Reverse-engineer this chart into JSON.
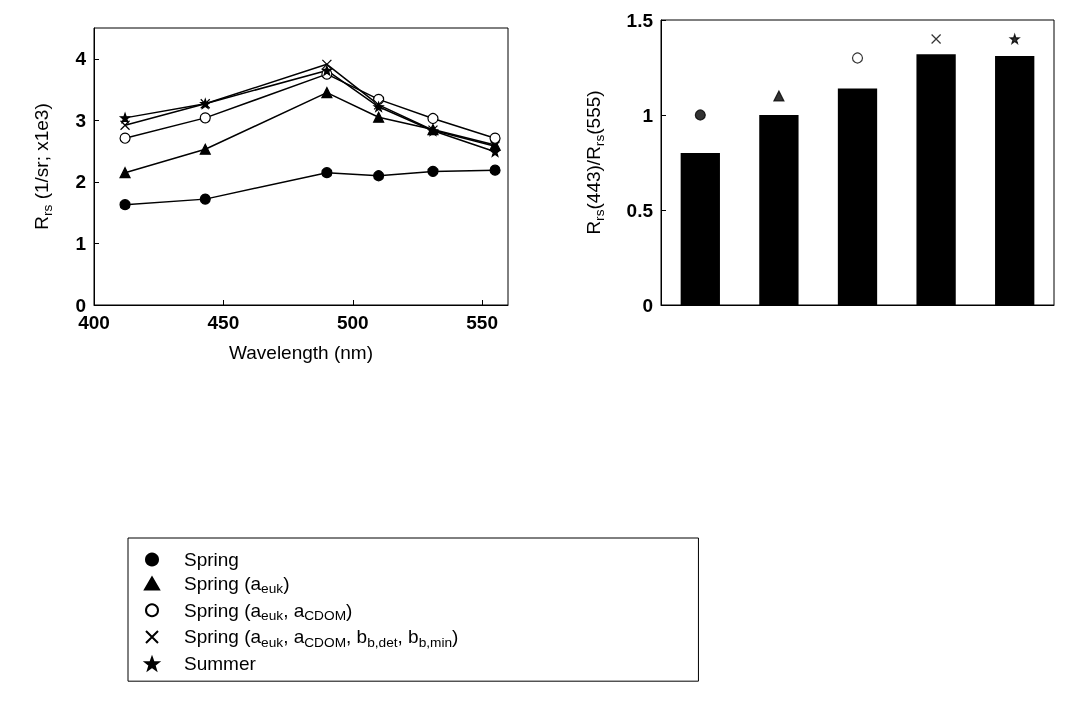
{
  "chart_data": [
    {
      "type": "line",
      "xlabel": "Wavelength (nm)",
      "ylabel": "R$_{rs}$ (1/sr; x1e3)",
      "x": [
        412,
        443,
        490,
        510,
        531,
        555
      ],
      "xlim": [
        400,
        560
      ],
      "xticks": [
        400,
        450,
        500,
        550
      ],
      "ylim": [
        0,
        4.5
      ],
      "yticks": [
        0,
        1,
        2,
        3,
        4
      ],
      "grid": false,
      "legend": "bottom",
      "line_style": "solid",
      "series": [
        {
          "name": "Spring",
          "color": "#000000",
          "marker": "circle",
          "values": [
            1.63,
            1.72,
            2.15,
            2.1,
            2.17,
            2.19
          ]
        },
        {
          "name": "Spring (a$_{euk}$)",
          "color": "#000000",
          "marker": "triangle",
          "values": [
            2.15,
            2.53,
            3.45,
            3.05,
            2.85,
            2.6
          ]
        },
        {
          "name": "Spring (a$_{euk}$, a$_{CDOM}$)",
          "color": "#ffffff",
          "marker": "circle",
          "values": [
            2.71,
            3.04,
            3.75,
            3.34,
            3.03,
            2.71
          ]
        },
        {
          "name": "Spring (a$_{euk}$, a$_{CDOM}$, b$_{b,det}$, b$_{b,min}$)",
          "color": "#000000",
          "marker": "cross",
          "values": [
            2.92,
            3.27,
            3.91,
            3.25,
            2.84,
            2.58
          ]
        },
        {
          "name": "Summer",
          "color": "#000000",
          "marker": "star",
          "values": [
            3.04,
            3.27,
            3.81,
            3.22,
            2.83,
            2.49
          ]
        }
      ]
    },
    {
      "type": "bar",
      "ylabel": "R$_{rs}$(443)/R$_{rs}$(555)",
      "categories": [
        null,
        null,
        null,
        null,
        null
      ],
      "ylim": [
        0,
        1.5
      ],
      "yticks": [
        0,
        0.5,
        1,
        1.5
      ],
      "tick_labels": "y",
      "grid": false,
      "series": [
        {
          "type": "bar",
          "color": "#000000",
          "values": [
            0.8,
            1.0,
            1.14,
            1.32,
            1.31
          ]
        },
        {
          "type": "scatter",
          "color": "#000000",
          "marker": "circle",
          "values": [
            1.0,
            null,
            null,
            null,
            null
          ]
        },
        {
          "type": "scatter",
          "color": "#000000",
          "marker": "triangle",
          "values": [
            null,
            1.1,
            null,
            null,
            null
          ]
        },
        {
          "type": "scatter",
          "color": "#ffffff",
          "marker": "circle",
          "values": [
            null,
            null,
            1.3,
            null,
            null
          ]
        },
        {
          "type": "scatter",
          "color": "#000000",
          "marker": "cross",
          "values": [
            null,
            null,
            null,
            1.4,
            null
          ]
        },
        {
          "type": "scatter",
          "color": "#000000",
          "marker": "star",
          "values": [
            null,
            null,
            null,
            null,
            1.4
          ]
        }
      ]
    }
  ]
}
